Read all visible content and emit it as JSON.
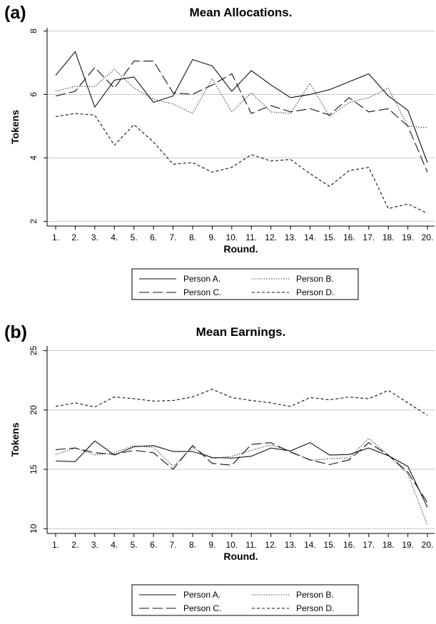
{
  "chart_data": [
    {
      "type": "line",
      "panel_label": "(a)",
      "title": "Mean Allocations.",
      "xlabel": "Round.",
      "ylabel": "Tokens",
      "x": [
        1,
        2,
        3,
        4,
        5,
        6,
        7,
        8,
        9,
        10,
        11,
        12,
        13,
        14,
        15,
        16,
        17,
        18,
        19,
        20
      ],
      "x_tick_labels": [
        "1.",
        "2.",
        "3.",
        "4.",
        "5.",
        "6.",
        "7.",
        "8.",
        "9.",
        "10.",
        "11.",
        "12.",
        "13.",
        "14.",
        "15.",
        "16.",
        "17.",
        "18.",
        "19.",
        "20."
      ],
      "ylim": [
        1.85,
        8.1
      ],
      "y_ticks": [
        2,
        4,
        6,
        8
      ],
      "grid": true,
      "legend": "bottom",
      "series": [
        {
          "name": "Person A.",
          "style": "solid",
          "values": [
            6.6,
            7.35,
            5.6,
            6.45,
            6.55,
            5.75,
            5.95,
            7.1,
            6.9,
            6.1,
            6.75,
            6.3,
            5.9,
            6.0,
            6.15,
            6.4,
            6.65,
            5.95,
            5.5,
            3.85
          ]
        },
        {
          "name": "Person B.",
          "style": "dotted",
          "values": [
            6.1,
            6.25,
            6.25,
            6.8,
            6.2,
            5.85,
            5.7,
            5.4,
            6.5,
            5.45,
            6.05,
            5.45,
            5.4,
            6.35,
            5.3,
            5.75,
            5.9,
            6.2,
            5.0,
            4.95
          ]
        },
        {
          "name": "Person C.",
          "style": "longdash",
          "values": [
            5.95,
            6.1,
            6.85,
            6.2,
            7.05,
            7.05,
            6.05,
            6.0,
            6.3,
            6.65,
            5.4,
            5.65,
            5.45,
            5.55,
            5.35,
            5.9,
            5.45,
            5.55,
            5.0,
            3.55
          ]
        },
        {
          "name": "Person D.",
          "style": "dashed",
          "values": [
            5.3,
            5.4,
            5.35,
            4.4,
            5.05,
            4.5,
            3.8,
            3.85,
            3.55,
            3.7,
            4.1,
            3.9,
            3.95,
            3.5,
            3.1,
            3.6,
            3.7,
            2.4,
            2.55,
            2.25
          ]
        }
      ]
    },
    {
      "type": "line",
      "panel_label": "(b)",
      "title": "Mean Earnings.",
      "xlabel": "Round.",
      "ylabel": "Tokens",
      "x": [
        1,
        2,
        3,
        4,
        5,
        6,
        7,
        8,
        9,
        10,
        11,
        12,
        13,
        14,
        15,
        16,
        17,
        18,
        19,
        20
      ],
      "x_tick_labels": [
        "1.",
        "2.",
        "3.",
        "4.",
        "5.",
        "6.",
        "7.",
        "8.",
        "9.",
        "10.",
        "11.",
        "12.",
        "13.",
        "14.",
        "15.",
        "16.",
        "17.",
        "18.",
        "19.",
        "20."
      ],
      "ylim": [
        9.6,
        25.4
      ],
      "y_ticks": [
        10,
        15,
        20,
        25
      ],
      "grid": true,
      "legend": "bottom",
      "series": [
        {
          "name": "Person A.",
          "style": "solid",
          "values": [
            15.7,
            15.65,
            17.4,
            16.2,
            16.9,
            17.0,
            16.5,
            16.5,
            16.0,
            15.95,
            16.1,
            16.8,
            16.55,
            17.25,
            16.2,
            16.25,
            16.8,
            16.15,
            15.25,
            11.8
          ]
        },
        {
          "name": "Person B.",
          "style": "dotted",
          "values": [
            16.25,
            16.8,
            16.2,
            16.4,
            17.0,
            16.85,
            15.25,
            16.85,
            15.9,
            16.1,
            16.6,
            17.05,
            16.55,
            15.75,
            15.9,
            15.95,
            17.6,
            16.2,
            14.6,
            10.3
          ]
        },
        {
          "name": "Person C.",
          "style": "longdash",
          "values": [
            16.65,
            16.8,
            16.4,
            16.25,
            16.6,
            16.4,
            15.0,
            17.0,
            15.5,
            15.35,
            17.1,
            17.25,
            16.45,
            15.8,
            15.4,
            15.8,
            17.25,
            16.2,
            14.75,
            12.2
          ]
        },
        {
          "name": "Person D.",
          "style": "dashed",
          "values": [
            20.3,
            20.6,
            20.25,
            21.1,
            20.95,
            20.75,
            20.8,
            21.1,
            21.75,
            21.05,
            20.8,
            20.6,
            20.3,
            21.05,
            20.85,
            21.1,
            20.95,
            21.65,
            20.6,
            19.55
          ]
        }
      ]
    }
  ]
}
